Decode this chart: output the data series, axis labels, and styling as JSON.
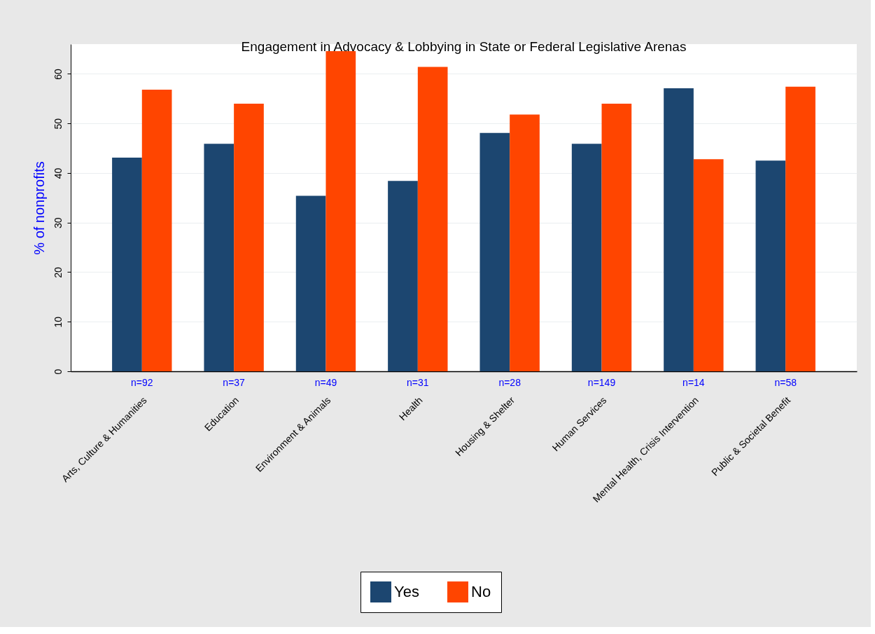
{
  "chart_data": {
    "type": "bar",
    "title": "Engagement in Advocacy & Lobbying in State or Federal Legislative Arenas",
    "ylabel": "% of nonprofits",
    "categories": [
      "Arts, Culture & Humanities",
      "Education",
      "Environment & Animals",
      "Health",
      "Housing & Shelter",
      "Human Services",
      "Mental Health, Crisis Intervention",
      "Public & Societal Benefit"
    ],
    "series": [
      {
        "name": "Yes",
        "color": "#1c4670",
        "values": [
          43.1,
          45.9,
          35.4,
          38.4,
          48.1,
          45.9,
          57.1,
          42.5
        ]
      },
      {
        "name": "No",
        "color": "#ff4500",
        "values": [
          56.8,
          54.0,
          64.6,
          61.4,
          51.8,
          54.0,
          42.8,
          57.4
        ]
      }
    ],
    "annotations": [
      "n=92",
      "n=37",
      "n=49",
      "n=31",
      "n=28",
      "n=149",
      "n=14",
      "n=58"
    ],
    "ylim": [
      0,
      66
    ],
    "yticks": [
      0,
      10,
      20,
      30,
      40,
      50,
      60
    ],
    "grid": "y",
    "legend": "bottom"
  }
}
